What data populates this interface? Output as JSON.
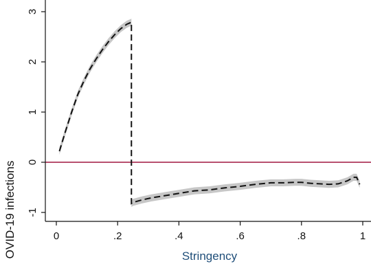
{
  "chart_data": {
    "type": "line",
    "title": "",
    "xlabel": "Stringency",
    "ylabel": "OVID-19 infections",
    "xlim": [
      0,
      1
    ],
    "ylim": [
      -1.1,
      3
    ],
    "x_ticks": [
      0,
      0.2,
      0.4,
      0.6,
      0.8,
      1
    ],
    "x_tick_labels": [
      "0",
      ".2",
      ".4",
      ".6",
      ".8",
      "1"
    ],
    "y_ticks": [
      -1,
      0,
      1,
      2,
      3
    ],
    "y_tick_labels": [
      "-1",
      "0",
      "1",
      "2",
      "3"
    ],
    "reference_line": {
      "y": 0,
      "color": "#a0153e"
    },
    "grid": false,
    "legend": "none",
    "colors": {
      "estimate": "#111111",
      "band": "#bdbdbd",
      "xlabel": "#1f4e79",
      "axis": "#111111"
    },
    "series": [
      {
        "style": "dashed",
        "x": [
          0.01,
          0.03,
          0.05,
          0.07,
          0.09,
          0.11,
          0.13,
          0.15,
          0.17,
          0.19,
          0.21,
          0.23,
          0.245,
          0.245,
          0.25,
          0.28,
          0.31,
          0.35,
          0.4,
          0.45,
          0.5,
          0.55,
          0.6,
          0.65,
          0.7,
          0.74,
          0.78,
          0.8,
          0.83,
          0.86,
          0.89,
          0.92,
          0.95,
          0.97,
          0.98,
          0.99
        ],
        "y": [
          0.22,
          0.62,
          1.0,
          1.35,
          1.62,
          1.86,
          2.06,
          2.24,
          2.4,
          2.54,
          2.66,
          2.75,
          2.79,
          -0.82,
          -0.8,
          -0.75,
          -0.71,
          -0.67,
          -0.62,
          -0.57,
          -0.55,
          -0.51,
          -0.48,
          -0.44,
          -0.41,
          -0.41,
          -0.4,
          -0.4,
          -0.42,
          -0.43,
          -0.44,
          -0.43,
          -0.37,
          -0.3,
          -0.3,
          -0.44
        ],
        "band_halfwidth": 0.07
      }
    ]
  }
}
